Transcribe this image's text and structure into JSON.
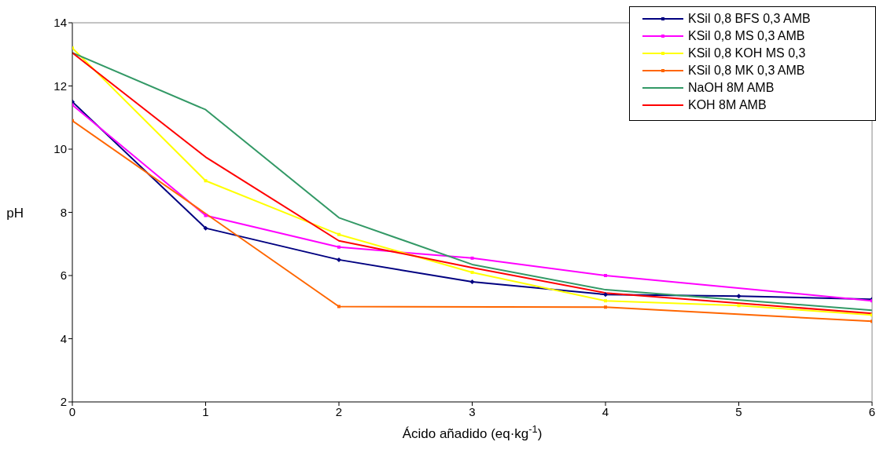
{
  "chart_data": {
    "type": "line",
    "xlabel": "Ácido añadido (eq·kg$^{-1}$)",
    "ylabel": "pH",
    "x": [
      0,
      1,
      2,
      3,
      4,
      5,
      6
    ],
    "xlim": [
      0,
      6
    ],
    "xticks": [
      0,
      1,
      2,
      3,
      4,
      5,
      6
    ],
    "ylim": [
      2,
      14
    ],
    "yticks": [
      2,
      4,
      6,
      8,
      10,
      12,
      14
    ],
    "grid": false,
    "legend": "top right",
    "line_style": "solid",
    "series": [
      {
        "name": "KSil 0,8 BFS 0,3 AMB",
        "color": "#000080",
        "marker": "diamond",
        "values": [
          11.5,
          7.5,
          6.5,
          5.8,
          5.4,
          5.35,
          5.25
        ]
      },
      {
        "name": "KSil 0,8 MS 0,3 AMB",
        "color": "#ff00ff",
        "marker": "square",
        "values": [
          11.4,
          7.9,
          6.9,
          6.55,
          6.0,
          null,
          5.2
        ]
      },
      {
        "name": "KSil 0,8 KOH MS 0,3",
        "color": "#ffff00",
        "marker": "square",
        "values": [
          13.2,
          9.0,
          7.3,
          6.1,
          5.2,
          5.05,
          4.75
        ]
      },
      {
        "name": "KSil 0,8 MK 0,3 AMB",
        "color": "#ff6600",
        "marker": "square",
        "values": [
          10.9,
          null,
          5.02,
          null,
          5.0,
          null,
          4.55
        ]
      },
      {
        "name": "NaOH 8M AMB",
        "color": "#339966",
        "marker": "none",
        "values": [
          13.05,
          11.25,
          7.83,
          6.35,
          5.55,
          null,
          4.9
        ]
      },
      {
        "name": "KOH 8M AMB",
        "color": "#ff0000",
        "marker": "none",
        "values": [
          13.05,
          9.75,
          7.1,
          6.25,
          5.45,
          null,
          4.8
        ]
      }
    ]
  }
}
